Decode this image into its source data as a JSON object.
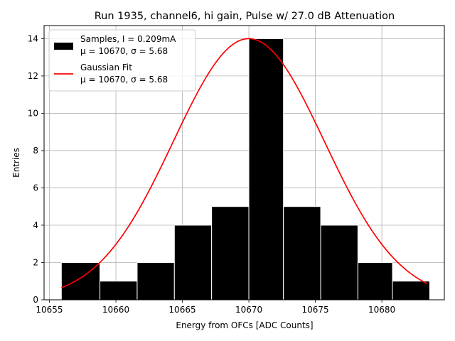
{
  "chart_data": {
    "type": "bar",
    "title": "Run 1935, channel6, hi gain, Pulse w/ 27.0 dB Attenuation",
    "xlabel": "Energy from OFCs [ADC Counts]",
    "ylabel": "Entries",
    "xlim": [
      10654.6,
      10684.7
    ],
    "ylim": [
      0,
      14.7
    ],
    "grid": true,
    "x_ticks": [
      10655,
      10660,
      10665,
      10670,
      10675,
      10680
    ],
    "y_ticks": [
      0,
      2,
      4,
      6,
      8,
      10,
      12,
      14
    ],
    "bins": [
      {
        "left": 10655.9,
        "right": 10658.8,
        "count": 2
      },
      {
        "left": 10658.8,
        "right": 10661.6,
        "count": 1
      },
      {
        "left": 10661.6,
        "right": 10664.4,
        "count": 2
      },
      {
        "left": 10664.4,
        "right": 10667.2,
        "count": 4
      },
      {
        "left": 10667.2,
        "right": 10670.0,
        "count": 5
      },
      {
        "left": 10670.0,
        "right": 10672.6,
        "count": 14
      },
      {
        "left": 10672.6,
        "right": 10675.4,
        "count": 5
      },
      {
        "left": 10675.4,
        "right": 10678.2,
        "count": 4
      },
      {
        "left": 10678.2,
        "right": 10680.8,
        "count": 2
      },
      {
        "left": 10680.8,
        "right": 10683.6,
        "count": 1
      }
    ],
    "fit": {
      "name": "Gaussian Fit",
      "color": "#ff0000",
      "amplitude": 14.0,
      "mean": 10670,
      "sigma": 5.68,
      "x_range": [
        10655.9,
        10683.4
      ]
    },
    "histogram_color": "#000000",
    "legend": {
      "position": "top-left",
      "entries": [
        {
          "line1": "Samples, I = 0.209mA",
          "line2": "μ = 10670, σ = 5.68"
        },
        {
          "line1": "Gaussian Fit",
          "line2": "μ = 10670, σ = 5.68"
        }
      ]
    }
  }
}
